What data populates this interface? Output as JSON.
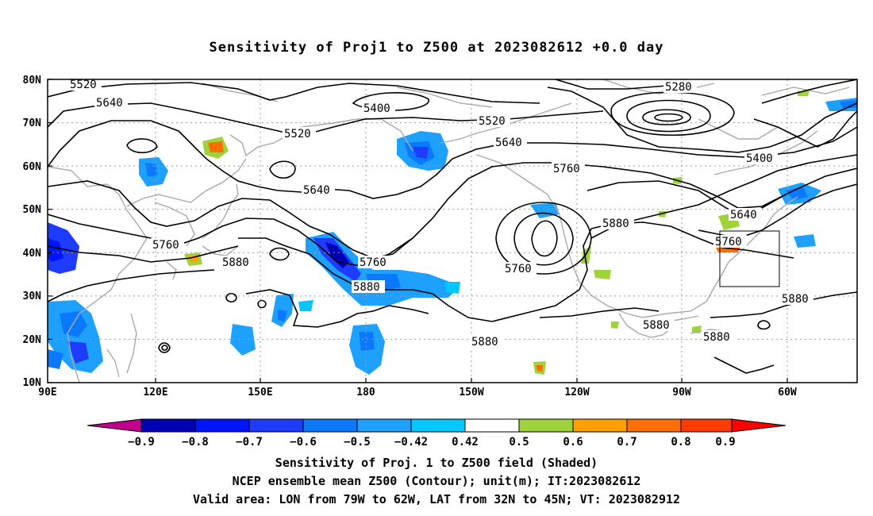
{
  "title": "Sensitivity of Proj1 to Z500 at 2023082612 +0.0 day",
  "lat_labels": [
    "80N",
    "70N",
    "60N",
    "50N",
    "40N",
    "30N",
    "20N",
    "10N"
  ],
  "lon_labels": [
    "90E",
    "120E",
    "150E",
    "180",
    "150W",
    "120W",
    "90W",
    "60W"
  ],
  "contour_labels": {
    "c5520a": "5520",
    "c5640a": "5640",
    "c5400a": "5400",
    "c5520b": "5520",
    "c5520c": "5520",
    "c5280": "5280",
    "c5640b": "5640",
    "c5760a": "5760",
    "c5400b": "5400",
    "c5640c": "5640",
    "c5640d": "5640",
    "c5760b": "5760",
    "c5880a": "5880",
    "c5760c": "5760",
    "c5880b": "5880",
    "c5760d": "5760",
    "c5880c": "5880",
    "c5760e": "5760",
    "c5880d": "5880",
    "c5880e": "5880",
    "c5880f": "5880",
    "c5880g": "5880"
  },
  "colorbar": {
    "colors": [
      "#c0008c",
      "#0000b4",
      "#0014ff",
      "#1e3cff",
      "#0a78ff",
      "#1ea0ff",
      "#00c8ff",
      "#ffffff",
      "#a0d23c",
      "#ffa000",
      "#ff6e00",
      "#ff3c00",
      "#ff0000",
      "#ff9ac8"
    ],
    "labels": [
      "−0.9",
      "−0.8",
      "−0.7",
      "−0.6",
      "−0.5",
      "−0.42",
      "0.42",
      "0.5",
      "0.6",
      "0.7",
      "0.8",
      "0.9"
    ]
  },
  "caption": {
    "line1": "Sensitivity of Proj. 1 to Z500 field (Shaded)",
    "line2": "NCEP ensemble mean Z500 (Contour); unit(m); IT:2023082612",
    "line3": "Valid area: LON from 79W to 62W, LAT from 32N to 45N; VT: 2023082912"
  }
}
